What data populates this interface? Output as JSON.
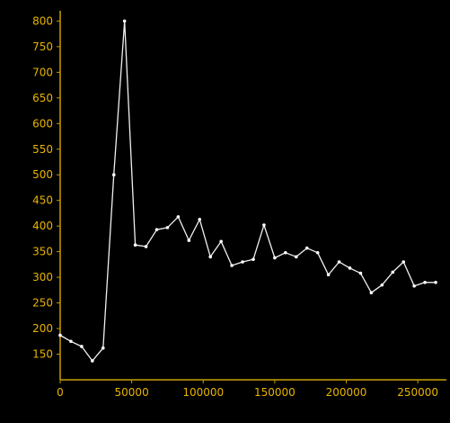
{
  "chart_data": {
    "type": "line",
    "title": "",
    "xlabel": "",
    "ylabel": "",
    "xlim": [
      0,
      270000
    ],
    "ylim": [
      100,
      820
    ],
    "grid": false,
    "legend": "none",
    "x_ticks": [
      {
        "value": 0,
        "label": "0"
      },
      {
        "value": 50000,
        "label": "50000"
      },
      {
        "value": 100000,
        "label": "100000"
      },
      {
        "value": 150000,
        "label": "150000"
      },
      {
        "value": 200000,
        "label": "200000"
      },
      {
        "value": 250000,
        "label": "250000"
      }
    ],
    "y_ticks": [
      {
        "value": 150,
        "label": "150"
      },
      {
        "value": 200,
        "label": "200"
      },
      {
        "value": 250,
        "label": "250"
      },
      {
        "value": 300,
        "label": "300"
      },
      {
        "value": 350,
        "label": "350"
      },
      {
        "value": 400,
        "label": "400"
      },
      {
        "value": 450,
        "label": "450"
      },
      {
        "value": 500,
        "label": "500"
      },
      {
        "value": 550,
        "label": "550"
      },
      {
        "value": 600,
        "label": "600"
      },
      {
        "value": 650,
        "label": "650"
      },
      {
        "value": 700,
        "label": "700"
      },
      {
        "value": 750,
        "label": "750"
      },
      {
        "value": 800,
        "label": "800"
      }
    ],
    "colors": {
      "background": "#000000",
      "axis": "#c8a000",
      "tick_label": "#e8b400",
      "line": "#f0f0f0",
      "marker": "#ffffff"
    },
    "series": [
      {
        "points": [
          {
            "x": 0,
            "y": 187
          },
          {
            "x": 7500,
            "y": 175
          },
          {
            "x": 15000,
            "y": 165
          },
          {
            "x": 22500,
            "y": 137
          },
          {
            "x": 30000,
            "y": 162
          },
          {
            "x": 37500,
            "y": 500
          },
          {
            "x": 45000,
            "y": 800
          },
          {
            "x": 52500,
            "y": 363
          },
          {
            "x": 60000,
            "y": 360
          },
          {
            "x": 67500,
            "y": 393
          },
          {
            "x": 75000,
            "y": 397
          },
          {
            "x": 82500,
            "y": 418
          },
          {
            "x": 90000,
            "y": 372
          },
          {
            "x": 97500,
            "y": 413
          },
          {
            "x": 105000,
            "y": 340
          },
          {
            "x": 112500,
            "y": 370
          },
          {
            "x": 120000,
            "y": 323
          },
          {
            "x": 127500,
            "y": 330
          },
          {
            "x": 135000,
            "y": 335
          },
          {
            "x": 142500,
            "y": 402
          },
          {
            "x": 150000,
            "y": 338
          },
          {
            "x": 157500,
            "y": 348
          },
          {
            "x": 165000,
            "y": 340
          },
          {
            "x": 172500,
            "y": 357
          },
          {
            "x": 180000,
            "y": 348
          },
          {
            "x": 187500,
            "y": 305
          },
          {
            "x": 195000,
            "y": 330
          },
          {
            "x": 202500,
            "y": 318
          },
          {
            "x": 210000,
            "y": 308
          },
          {
            "x": 217500,
            "y": 270
          },
          {
            "x": 225000,
            "y": 285
          },
          {
            "x": 232500,
            "y": 310
          },
          {
            "x": 240000,
            "y": 330
          },
          {
            "x": 247500,
            "y": 283
          },
          {
            "x": 255000,
            "y": 290
          },
          {
            "x": 262500,
            "y": 290
          }
        ]
      }
    ]
  }
}
